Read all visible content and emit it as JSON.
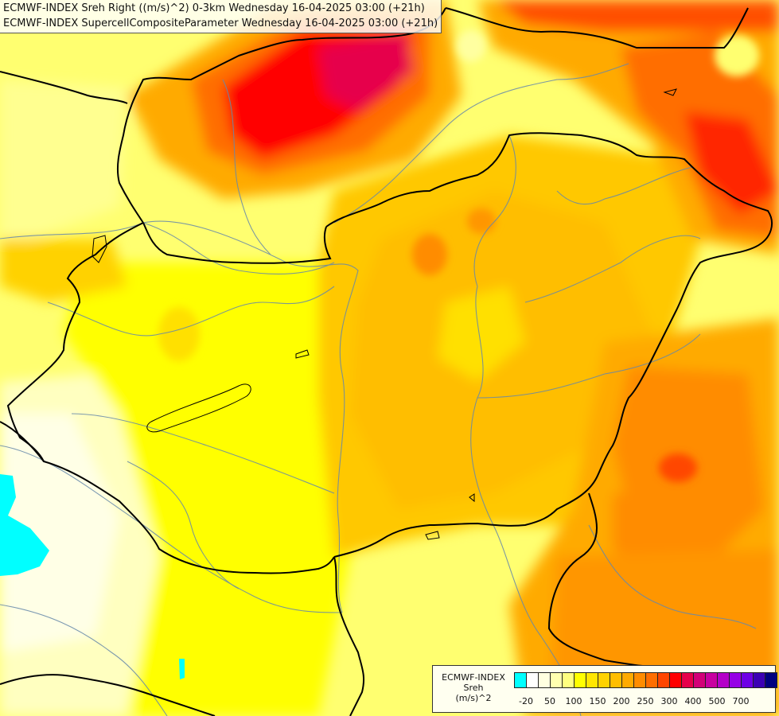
{
  "title": {
    "line1": "ECMWF-INDEX Sreh Right ((m/s)^2) 0-3km Wednesday 16-04-2025 03:00 (+21h)",
    "line2": "ECMWF-INDEX SupercellCompositeParameter Wednesday 16-04-2025 03:00 (+21h)"
  },
  "legend": {
    "title_line1": "ECMWF-INDEX",
    "title_line2": "Sreh",
    "title_line3": "(m/s)^2",
    "colors": [
      "#00ffff",
      "#ffffff",
      "#ffffe0",
      "#ffffb0",
      "#ffff80",
      "#ffff00",
      "#ffe600",
      "#ffd200",
      "#ffbe00",
      "#ffaa00",
      "#ff8c00",
      "#ff6e00",
      "#ff4600",
      "#ff0000",
      "#e6004b",
      "#d20078",
      "#c800a0",
      "#b400c8",
      "#9600e6",
      "#6e00e6",
      "#3c00b4",
      "#000080"
    ],
    "tick_labels": [
      "-20",
      "50",
      "100",
      "150",
      "200",
      "250",
      "300",
      "400",
      "500",
      "700"
    ]
  },
  "colors": {
    "yellow": "#ffff00",
    "light_yellow": "#ffff80",
    "orange": "#ffaa00",
    "red": "#ff0000",
    "magenta": "#e6004b",
    "cyan": "#00ffff"
  }
}
